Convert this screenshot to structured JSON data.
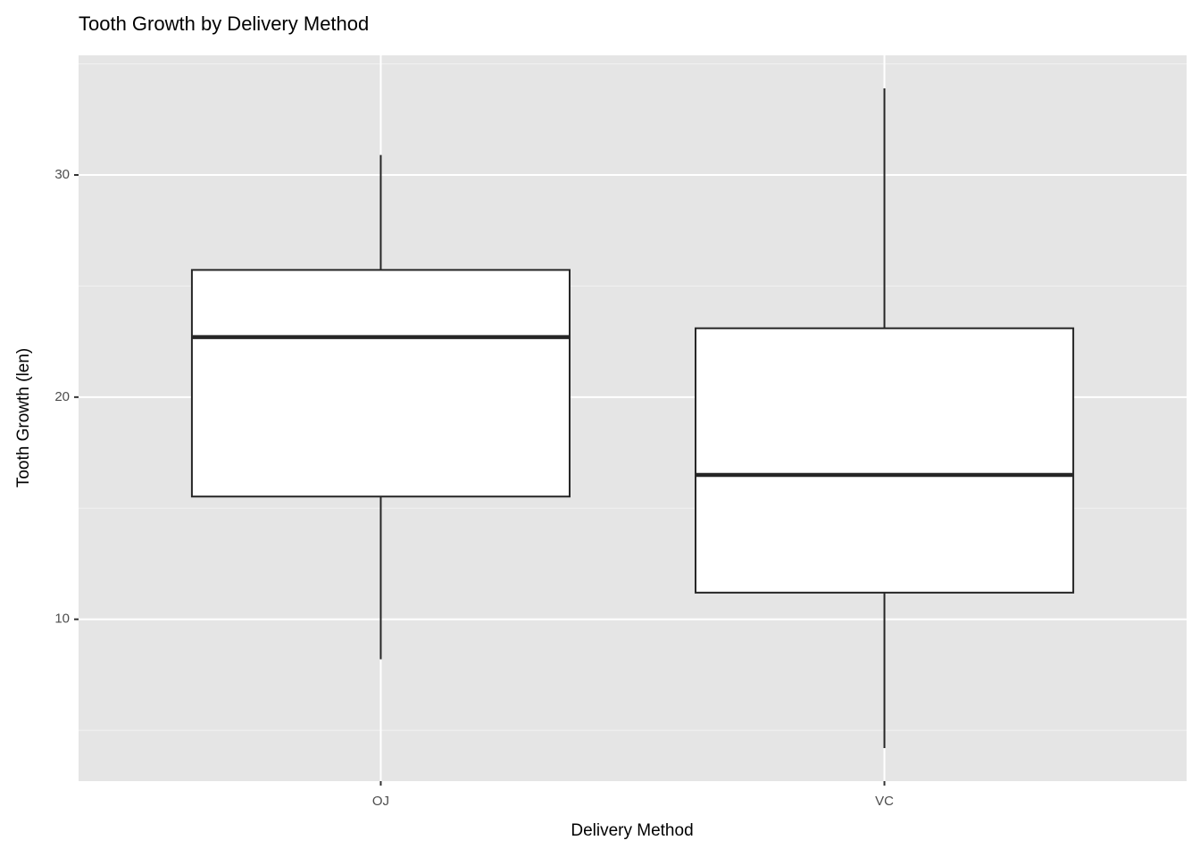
{
  "chart_data": {
    "type": "box",
    "title": "Tooth Growth by Delivery Method",
    "x_label": "Delivery Method",
    "y_label": "Tooth Growth (len)",
    "categories": [
      "OJ",
      "VC"
    ],
    "min": [
      8.2,
      4.2
    ],
    "q1": [
      15.525,
      11.2
    ],
    "median": [
      22.7,
      16.5
    ],
    "q3": [
      25.725,
      23.1
    ],
    "max": [
      30.9,
      33.9
    ],
    "ylim": [
      2.715,
      35.385
    ],
    "yticks": [
      10,
      20,
      30
    ],
    "minor_yticks": [
      5,
      15,
      25,
      35
    ],
    "grid": true,
    "box_fill": "#ffffff",
    "box_stroke": "#262626"
  }
}
